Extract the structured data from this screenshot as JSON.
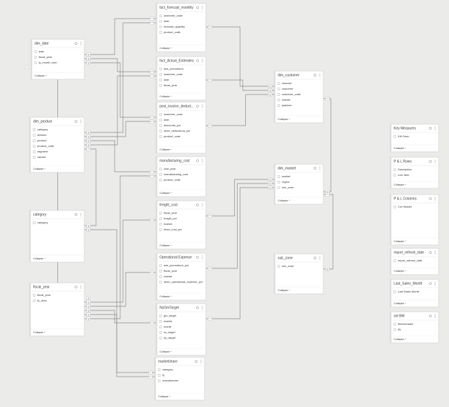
{
  "collapse_label": "Collapse ^",
  "tables": [
    {
      "name": "fact_forecast_monthly",
      "fields": [
        "customer_code",
        "date",
        "forecast_quantity",
        "product_code"
      ]
    },
    {
      "name": "fact_Actual_Estimates",
      "fields": [
        "ads_promotions",
        "customer_code",
        "date",
        "fiscal_year"
      ]
    },
    {
      "name": "post_invoice_deduct...",
      "fields": [
        "customer_code",
        "date",
        "discounts_pct",
        "other_deductions_pct",
        "product_code"
      ]
    },
    {
      "name": "manufacturing_cost",
      "fields": [
        "cost_year",
        "manufacturing_cost",
        "product_code"
      ]
    },
    {
      "name": "freight_cost",
      "fields": [
        "fiscal_year",
        "freight_pct",
        "market",
        "other_cost_pct"
      ]
    },
    {
      "name": "Operational Expense",
      "fields": [
        "ads_promotions_pct",
        "fiscal_year",
        "market",
        "other_operational_expense_pct"
      ]
    },
    {
      "name": "NsGmTarget",
      "fields": [
        "gm_target",
        "market",
        "month",
        "ns_target",
        "np_target"
      ]
    },
    {
      "name": "marketshare",
      "fields": [
        "category",
        "fy",
        "manufacturer"
      ]
    },
    {
      "name": "dim_date",
      "fields": [
        "date",
        "fiscal_year",
        "fy_month_num"
      ]
    },
    {
      "name": "dim_product",
      "fields": [
        "category",
        "division",
        "product",
        "product_code",
        "segment",
        "variant"
      ]
    },
    {
      "name": "category",
      "fields": [
        "category"
      ]
    },
    {
      "name": "fiscal_year",
      "fields": [
        "fiscal_year",
        "fy_desc"
      ]
    },
    {
      "name": "dim_customer",
      "fields": [
        "channel",
        "customer",
        "customer_code",
        "market",
        "platform"
      ]
    },
    {
      "name": "dim_market",
      "fields": [
        "market",
        "region",
        "sub_zone"
      ]
    },
    {
      "name": "sub_zone",
      "fields": [
        "sub_zone"
      ]
    },
    {
      "name": "Key Measures",
      "fields": [
        "KM Desc"
      ]
    },
    {
      "name": "P & L Rows",
      "fields": [
        "Description",
        "Line Item"
      ]
    },
    {
      "name": "P & L Columns",
      "fields": [
        "Col Header"
      ]
    },
    {
      "name": "report_refresh_date",
      "fields": [
        "report_refresh_date"
      ]
    },
    {
      "name": "Last_Sales_Month",
      "fields": [
        "Last Sales Month"
      ]
    },
    {
      "name": "set BM",
      "fields": [
        "Benchmarks",
        "BL"
      ]
    }
  ],
  "relationships": [
    {
      "from": "dim_date",
      "to": "fact_forecast_monthly",
      "from_end": "1",
      "to_end": "*"
    },
    {
      "from": "dim_date",
      "to": "fact_Actual_Estimates",
      "from_end": "1",
      "to_end": "*"
    },
    {
      "from": "dim_date",
      "to": "post_invoice_deduct...",
      "from_end": "1",
      "to_end": "*"
    },
    {
      "from": "dim_product",
      "to": "fact_forecast_monthly",
      "from_end": "1",
      "to_end": "*"
    },
    {
      "from": "dim_product",
      "to": "post_invoice_deduct...",
      "from_end": "1",
      "to_end": "*"
    },
    {
      "from": "dim_product",
      "to": "manufacturing_cost",
      "from_end": "1",
      "to_end": "*"
    },
    {
      "from": "dim_product",
      "to": "fact_Actual_Estimates",
      "from_end": "1",
      "to_end": "*"
    },
    {
      "from": "dim_customer",
      "to": "fact_forecast_monthly",
      "from_end": "1",
      "to_end": "*"
    },
    {
      "from": "dim_customer",
      "to": "fact_Actual_Estimates",
      "from_end": "1",
      "to_end": "*"
    },
    {
      "from": "dim_customer",
      "to": "post_invoice_deduct...",
      "from_end": "1",
      "to_end": "*"
    },
    {
      "from": "dim_market",
      "to": "freight_cost",
      "from_end": "1",
      "to_end": "*"
    },
    {
      "from": "dim_market",
      "to": "Operational Expense",
      "from_end": "1",
      "to_end": "*"
    },
    {
      "from": "dim_market",
      "to": "NsGmTarget",
      "from_end": "1",
      "to_end": "*"
    },
    {
      "from": "dim_market",
      "to": "dim_customer",
      "from_end": "1",
      "to_end": "*"
    },
    {
      "from": "sub_zone",
      "to": "dim_market",
      "from_end": "1",
      "to_end": "*"
    },
    {
      "from": "category",
      "to": "dim_product",
      "from_end": "1",
      "to_end": "*"
    },
    {
      "from": "category",
      "to": "marketshare",
      "from_end": "1",
      "to_end": "*"
    },
    {
      "from": "fiscal_year",
      "to": "dim_date",
      "from_end": "1",
      "to_end": "*"
    },
    {
      "from": "fiscal_year",
      "to": "freight_cost",
      "from_end": "1",
      "to_end": "*"
    },
    {
      "from": "fiscal_year",
      "to": "Operational Expense",
      "from_end": "1",
      "to_end": "*"
    },
    {
      "from": "fiscal_year",
      "to": "NsGmTarget",
      "from_end": "1",
      "to_end": "*"
    },
    {
      "from": "fiscal_year",
      "to": "marketshare",
      "from_end": "1",
      "to_end": "*"
    },
    {
      "from": "fiscal_year",
      "to": "manufacturing_cost",
      "from_end": "1",
      "to_end": "*"
    }
  ]
}
